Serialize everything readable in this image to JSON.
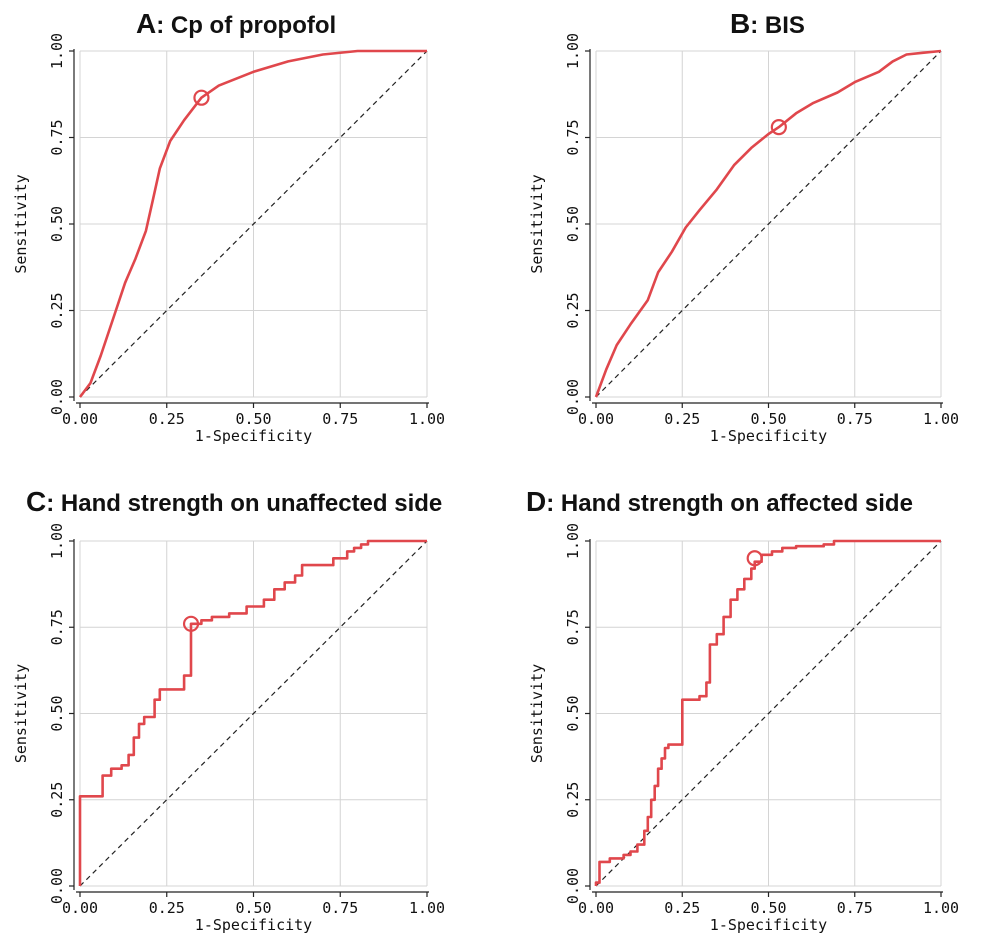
{
  "chart_data": [
    {
      "type": "line",
      "panel_letter": "A",
      "title": ": Cp of propofol",
      "xlabel": "1-Specificity",
      "ylabel": "Sensitivity",
      "xlim": [
        0,
        1
      ],
      "ylim": [
        0,
        1
      ],
      "xticks": [
        "0.00",
        "0.25",
        "0.50",
        "0.75",
        "1.00"
      ],
      "yticks": [
        "0.00",
        "0.25",
        "0.50",
        "0.75",
        "1.00"
      ],
      "grid": true,
      "series": [
        {
          "color": "#e0474c",
          "step": false,
          "points": [
            [
              0,
              0
            ],
            [
              0.03,
              0.04
            ],
            [
              0.06,
              0.12
            ],
            [
              0.1,
              0.24
            ],
            [
              0.13,
              0.33
            ],
            [
              0.16,
              0.4
            ],
            [
              0.19,
              0.48
            ],
            [
              0.21,
              0.57
            ],
            [
              0.23,
              0.66
            ],
            [
              0.26,
              0.74
            ],
            [
              0.3,
              0.8
            ],
            [
              0.35,
              0.865
            ],
            [
              0.4,
              0.9
            ],
            [
              0.5,
              0.94
            ],
            [
              0.6,
              0.97
            ],
            [
              0.7,
              0.99
            ],
            [
              0.8,
              1.0
            ],
            [
              1.0,
              1.0
            ]
          ]
        }
      ],
      "reference_line": [
        [
          0,
          0
        ],
        [
          1,
          1
        ]
      ],
      "optimal_point": [
        0.35,
        0.865
      ]
    },
    {
      "type": "line",
      "panel_letter": "B",
      "title": ": BIS",
      "xlabel": "1-Specificity",
      "ylabel": "Sensitivity",
      "xlim": [
        0,
        1
      ],
      "ylim": [
        0,
        1
      ],
      "xticks": [
        "0.00",
        "0.25",
        "0.50",
        "0.75",
        "1.00"
      ],
      "yticks": [
        "0.00",
        "0.25",
        "0.50",
        "0.75",
        "1.00"
      ],
      "grid": true,
      "series": [
        {
          "color": "#e0474c",
          "step": false,
          "points": [
            [
              0,
              0
            ],
            [
              0.03,
              0.08
            ],
            [
              0.06,
              0.15
            ],
            [
              0.1,
              0.21
            ],
            [
              0.15,
              0.28
            ],
            [
              0.18,
              0.36
            ],
            [
              0.22,
              0.42
            ],
            [
              0.26,
              0.49
            ],
            [
              0.3,
              0.54
            ],
            [
              0.35,
              0.6
            ],
            [
              0.4,
              0.67
            ],
            [
              0.45,
              0.72
            ],
            [
              0.5,
              0.76
            ],
            [
              0.53,
              0.78
            ],
            [
              0.58,
              0.82
            ],
            [
              0.63,
              0.85
            ],
            [
              0.7,
              0.88
            ],
            [
              0.75,
              0.91
            ],
            [
              0.82,
              0.94
            ],
            [
              0.86,
              0.97
            ],
            [
              0.9,
              0.99
            ],
            [
              0.95,
              0.995
            ],
            [
              1.0,
              1.0
            ]
          ]
        }
      ],
      "reference_line": [
        [
          0,
          0
        ],
        [
          1,
          1
        ]
      ],
      "optimal_point": [
        0.53,
        0.78
      ]
    },
    {
      "type": "line",
      "panel_letter": "C",
      "title": ": Hand strength on unaffected side",
      "xlabel": "1-Specificity",
      "ylabel": "Sensitivity",
      "xlim": [
        0,
        1
      ],
      "ylim": [
        0,
        1
      ],
      "xticks": [
        "0.00",
        "0.25",
        "0.50",
        "0.75",
        "1.00"
      ],
      "yticks": [
        "0.00",
        "0.25",
        "0.50",
        "0.75",
        "1.00"
      ],
      "grid": true,
      "series": [
        {
          "color": "#e0474c",
          "step": true,
          "points": [
            [
              0,
              0
            ],
            [
              0,
              0.26
            ],
            [
              0.065,
              0.26
            ],
            [
              0.065,
              0.32
            ],
            [
              0.09,
              0.32
            ],
            [
              0.09,
              0.34
            ],
            [
              0.12,
              0.34
            ],
            [
              0.12,
              0.35
            ],
            [
              0.14,
              0.35
            ],
            [
              0.14,
              0.38
            ],
            [
              0.155,
              0.38
            ],
            [
              0.155,
              0.43
            ],
            [
              0.17,
              0.43
            ],
            [
              0.17,
              0.47
            ],
            [
              0.185,
              0.47
            ],
            [
              0.185,
              0.49
            ],
            [
              0.215,
              0.49
            ],
            [
              0.215,
              0.54
            ],
            [
              0.23,
              0.54
            ],
            [
              0.23,
              0.57
            ],
            [
              0.3,
              0.57
            ],
            [
              0.3,
              0.61
            ],
            [
              0.32,
              0.61
            ],
            [
              0.32,
              0.76
            ],
            [
              0.35,
              0.76
            ],
            [
              0.35,
              0.77
            ],
            [
              0.38,
              0.77
            ],
            [
              0.38,
              0.78
            ],
            [
              0.43,
              0.78
            ],
            [
              0.43,
              0.79
            ],
            [
              0.48,
              0.79
            ],
            [
              0.48,
              0.81
            ],
            [
              0.53,
              0.81
            ],
            [
              0.53,
              0.83
            ],
            [
              0.56,
              0.83
            ],
            [
              0.56,
              0.86
            ],
            [
              0.59,
              0.86
            ],
            [
              0.59,
              0.88
            ],
            [
              0.62,
              0.88
            ],
            [
              0.62,
              0.9
            ],
            [
              0.64,
              0.9
            ],
            [
              0.64,
              0.93
            ],
            [
              0.73,
              0.93
            ],
            [
              0.73,
              0.95
            ],
            [
              0.77,
              0.95
            ],
            [
              0.77,
              0.97
            ],
            [
              0.79,
              0.97
            ],
            [
              0.79,
              0.98
            ],
            [
              0.81,
              0.98
            ],
            [
              0.81,
              0.99
            ],
            [
              0.83,
              0.99
            ],
            [
              0.83,
              1.0
            ],
            [
              1.0,
              1.0
            ]
          ]
        }
      ],
      "reference_line": [
        [
          0,
          0
        ],
        [
          1,
          1
        ]
      ],
      "optimal_point": [
        0.32,
        0.76
      ]
    },
    {
      "type": "line",
      "panel_letter": "D",
      "title": ": Hand strength on affected side",
      "xlabel": "1-Specificity",
      "ylabel": "Sensitivity",
      "xlim": [
        0,
        1
      ],
      "ylim": [
        0,
        1
      ],
      "xticks": [
        "0.00",
        "0.25",
        "0.50",
        "0.75",
        "1.00"
      ],
      "yticks": [
        "0.00",
        "0.25",
        "0.50",
        "0.75",
        "1.00"
      ],
      "grid": true,
      "series": [
        {
          "color": "#e0474c",
          "step": true,
          "points": [
            [
              0,
              0
            ],
            [
              0,
              0.01
            ],
            [
              0.01,
              0.01
            ],
            [
              0.01,
              0.07
            ],
            [
              0.04,
              0.07
            ],
            [
              0.04,
              0.08
            ],
            [
              0.08,
              0.08
            ],
            [
              0.08,
              0.09
            ],
            [
              0.1,
              0.09
            ],
            [
              0.1,
              0.1
            ],
            [
              0.12,
              0.1
            ],
            [
              0.12,
              0.12
            ],
            [
              0.14,
              0.12
            ],
            [
              0.14,
              0.16
            ],
            [
              0.15,
              0.16
            ],
            [
              0.15,
              0.2
            ],
            [
              0.16,
              0.2
            ],
            [
              0.16,
              0.25
            ],
            [
              0.17,
              0.25
            ],
            [
              0.17,
              0.29
            ],
            [
              0.18,
              0.29
            ],
            [
              0.18,
              0.34
            ],
            [
              0.19,
              0.34
            ],
            [
              0.19,
              0.37
            ],
            [
              0.2,
              0.37
            ],
            [
              0.2,
              0.4
            ],
            [
              0.21,
              0.4
            ],
            [
              0.21,
              0.41
            ],
            [
              0.25,
              0.41
            ],
            [
              0.25,
              0.54
            ],
            [
              0.3,
              0.54
            ],
            [
              0.3,
              0.55
            ],
            [
              0.32,
              0.55
            ],
            [
              0.32,
              0.59
            ],
            [
              0.33,
              0.59
            ],
            [
              0.33,
              0.7
            ],
            [
              0.35,
              0.7
            ],
            [
              0.35,
              0.73
            ],
            [
              0.37,
              0.73
            ],
            [
              0.37,
              0.78
            ],
            [
              0.39,
              0.78
            ],
            [
              0.39,
              0.83
            ],
            [
              0.41,
              0.83
            ],
            [
              0.41,
              0.86
            ],
            [
              0.43,
              0.86
            ],
            [
              0.43,
              0.89
            ],
            [
              0.45,
              0.89
            ],
            [
              0.45,
              0.92
            ],
            [
              0.46,
              0.92
            ],
            [
              0.46,
              0.94
            ],
            [
              0.48,
              0.94
            ],
            [
              0.48,
              0.96
            ],
            [
              0.51,
              0.96
            ],
            [
              0.51,
              0.97
            ],
            [
              0.54,
              0.97
            ],
            [
              0.54,
              0.98
            ],
            [
              0.58,
              0.98
            ],
            [
              0.58,
              0.985
            ],
            [
              0.66,
              0.985
            ],
            [
              0.66,
              0.99
            ],
            [
              0.69,
              0.99
            ],
            [
              0.69,
              1.0
            ],
            [
              1.0,
              1.0
            ]
          ]
        }
      ],
      "reference_line": [
        [
          0,
          0
        ],
        [
          1,
          1
        ]
      ],
      "optimal_point": [
        0.46,
        0.95
      ]
    }
  ]
}
